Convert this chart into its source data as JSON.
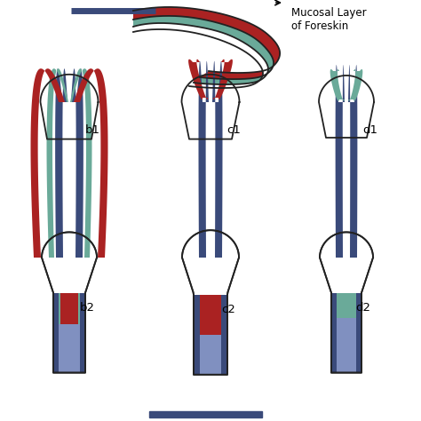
{
  "bg_color": "#ffffff",
  "outline_color": "#222222",
  "dark_blue": "#3a4a7a",
  "medium_blue": "#8090c0",
  "red": "#aa2222",
  "teal": "#6aaa99",
  "title_text": "Mucosal Layer\nof Foreskin",
  "labels": [
    "b1",
    "c1",
    "d1",
    "b2",
    "c2",
    "d2"
  ]
}
